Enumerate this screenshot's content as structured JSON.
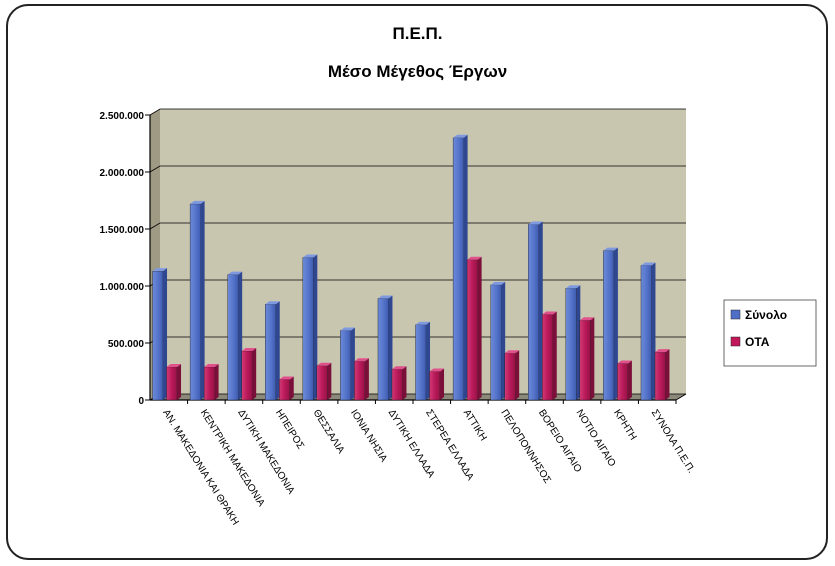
{
  "chart_data": {
    "type": "bar",
    "title": "Π.Ε.Π.",
    "subtitle": "Μέσο Μέγεθος Έργων",
    "xlabel": "",
    "ylabel": "",
    "ylim": [
      0,
      2500000
    ],
    "yticks": [
      "0",
      "500.000",
      "1.000.000",
      "1.500.000",
      "2.000.000",
      "2.500.000"
    ],
    "grid": true,
    "legend": "right",
    "categories": [
      "ΑΝ. ΜΑΚΕΔΟΝΙΑ ΚΑΙ ΘΡΑΚΗ",
      "ΚΕΝΤΡΙΚΗ ΜΑΚΕΔΟΝΙΑ",
      "ΔΥΤΙΚΗ ΜΑΚΕΔΟΝΙΑ",
      "ΗΠΕΙΡΟΣ",
      "ΘΕΣΣΑΛΙΑ",
      "ΙΟΝΙΑ ΝΗΣΙΑ",
      "ΔΥΤΙΚΗ ΕΛΛΑΔΑ",
      "ΣΤΕΡΕΑ ΕΛΛΑΔΑ",
      "ΑΤΤΙΚΗ",
      "ΠΕΛΟΠΟΝΝΗΣΟΣ",
      "ΒΟΡΕΙΟ ΑΙΓΑΙΟ",
      "ΝΟΤΙΟ ΑΙΓΑΙΟ",
      "ΚΡΗΤΗ",
      "ΣΥΝΟΛΑ Π.Ε.Π."
    ],
    "series": [
      {
        "name": "Σύνολο",
        "color": "#4f6fc6",
        "values": [
          1130000,
          1720000,
          1100000,
          840000,
          1250000,
          610000,
          890000,
          660000,
          2300000,
          1010000,
          1540000,
          980000,
          1310000,
          1180000
        ]
      },
      {
        "name": "ΟΤΑ",
        "color": "#c2185b",
        "values": [
          290000,
          290000,
          430000,
          180000,
          300000,
          340000,
          270000,
          250000,
          1230000,
          410000,
          750000,
          700000,
          320000,
          420000
        ]
      }
    ]
  }
}
